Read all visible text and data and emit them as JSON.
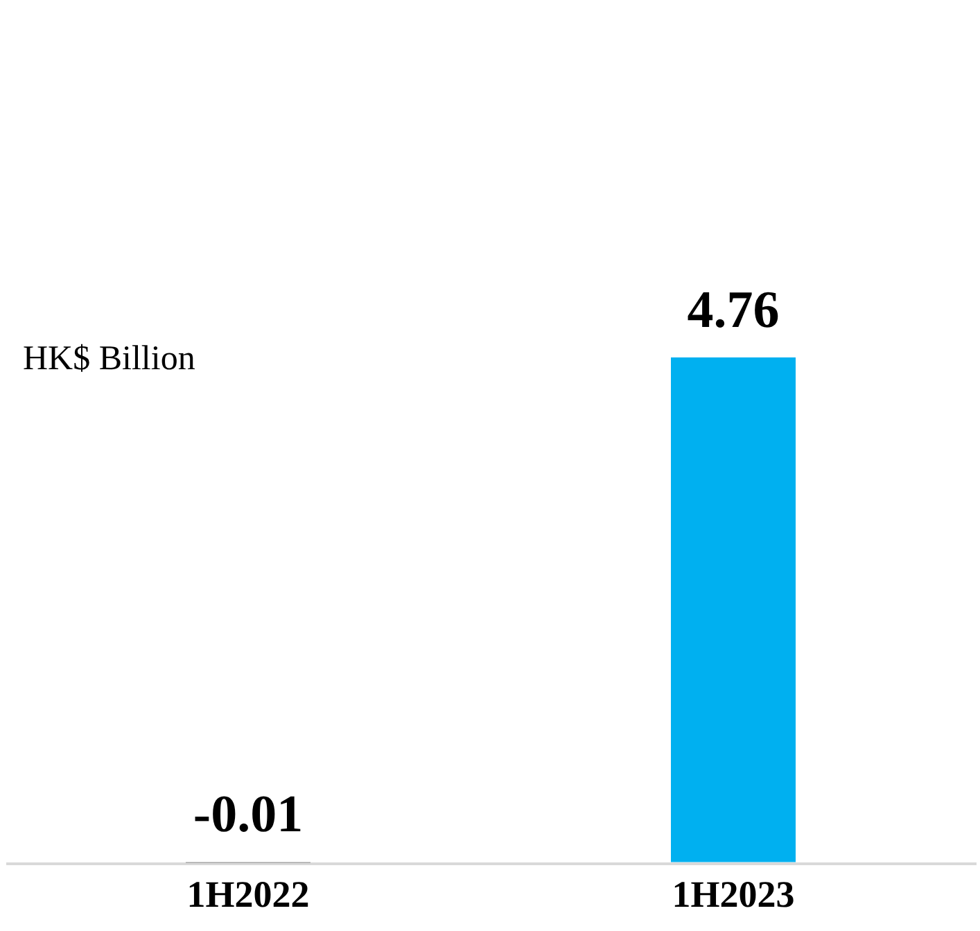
{
  "chart_data": {
    "type": "bar",
    "ylabel": "HK$ Billion",
    "categories": [
      "1H2022",
      "1H2023"
    ],
    "values": [
      -0.01,
      4.76
    ],
    "colors": [
      "#a6a6a6",
      "#00b0f0"
    ],
    "data_labels": true
  }
}
